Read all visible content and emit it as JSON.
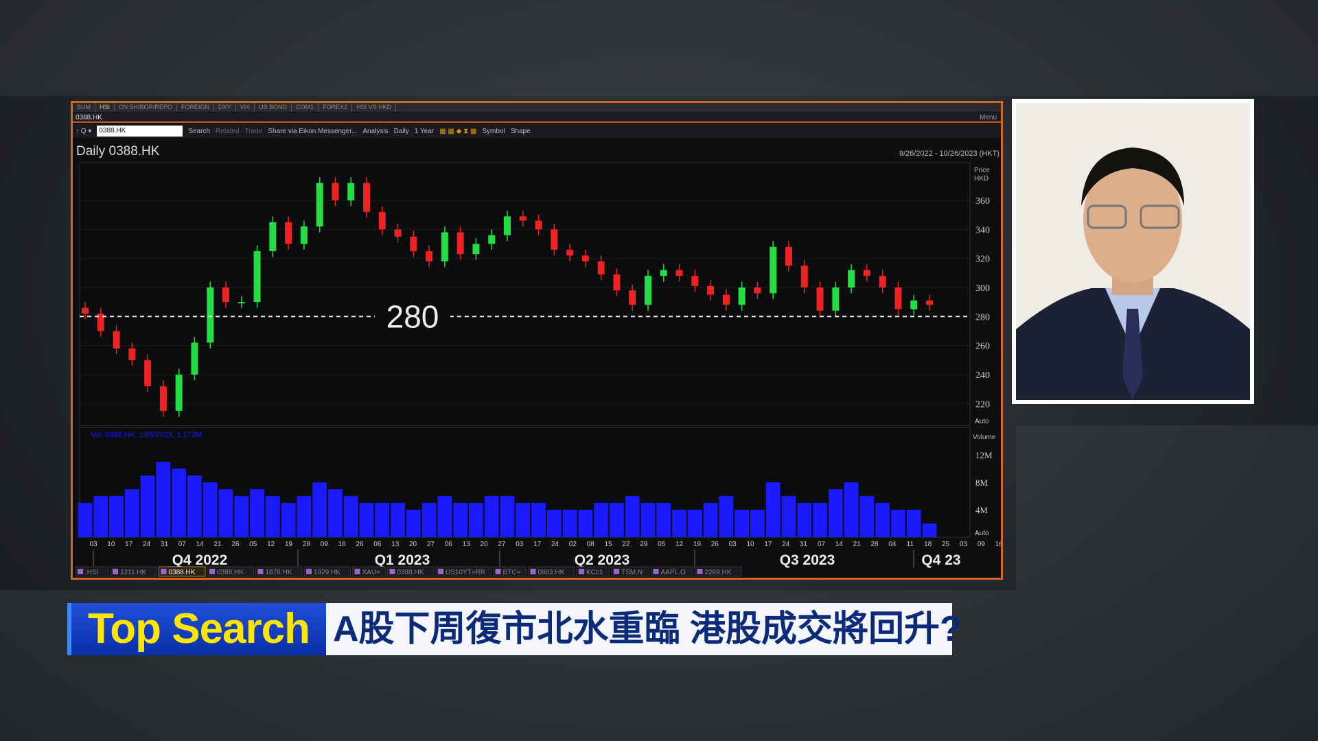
{
  "top_tabs": [
    "SUM",
    "HSI",
    "CN SHIBOR/REPO",
    "FOREIGN",
    "DXY",
    "VIX",
    "US BOND",
    "COM1",
    "FOREX2",
    "HSI VS HKD"
  ],
  "window_title": "0388.HK",
  "menu_label": "Menu",
  "toolbar": {
    "ric_value": "0388.HK",
    "search": "Search",
    "related": "Related",
    "trade": "Trade",
    "share": "Share via Eikon Messenger...",
    "analysis": "Analysis",
    "interval": "Daily",
    "period": "1 Year",
    "symbol": "Symbol",
    "shape": "Shape"
  },
  "bottom_tabs": [
    ".HSI",
    "1211.HK",
    "0388.HK",
    "0388.HK",
    "1876.HK",
    "1929.HK",
    "XAU=",
    "0388.HK",
    "US10YT=RR",
    "BTC=",
    "0883.HK",
    "KCc1",
    "TSM.N",
    "AAPL.O",
    "2269.HK"
  ],
  "active_bottom_tab": 2,
  "banner": {
    "tag": "Top Search",
    "headline": "A股下周復市北水重臨 港股成交將回升?",
    "tag_color": "#1f4fd8",
    "tag_text_color": "#ffe600",
    "headline_color": "#0b2a7a"
  },
  "chart_data": {
    "type": "candlestick",
    "title": "Daily 0388.HK",
    "date_range": "9/26/2022 - 10/26/2023 (HKT)",
    "price_axis_label": "Price HKD",
    "volume_axis_label": "Volume",
    "volume_legend": "Vol, 0388.HK, 10/6/2023, 1.173M",
    "auto_label": "Auto",
    "ylim": [
      205,
      386
    ],
    "price_ticks": [
      220,
      240,
      260,
      280,
      300,
      320,
      340,
      360
    ],
    "volume_ylim_millions": [
      0,
      16
    ],
    "volume_ticks": [
      "4M",
      "8M",
      "12M"
    ],
    "volume_tick_values": [
      4,
      8,
      12
    ],
    "reference_line": {
      "value": 280,
      "label": "280"
    },
    "date_ticks": [
      "03",
      "10",
      "17",
      "24",
      "31",
      "07",
      "14",
      "21",
      "28",
      "05",
      "12",
      "19",
      "28",
      "09",
      "16",
      "26",
      "06",
      "13",
      "20",
      "27",
      "06",
      "13",
      "20",
      "27",
      "03",
      "17",
      "24",
      "02",
      "08",
      "15",
      "22",
      "29",
      "05",
      "12",
      "19",
      "26",
      "03",
      "10",
      "17",
      "24",
      "31",
      "07",
      "14",
      "21",
      "28",
      "04",
      "11",
      "18",
      "25",
      "03",
      "09",
      "16",
      "24"
    ],
    "quarters": [
      "Q4 2022",
      "Q1 2023",
      "Q2 2023",
      "Q3 2023",
      "Q4 23"
    ],
    "weekly_close": [
      282,
      270,
      258,
      250,
      232,
      215,
      240,
      262,
      300,
      290,
      290,
      325,
      345,
      330,
      342,
      372,
      360,
      372,
      352,
      340,
      335,
      325,
      318,
      338,
      323,
      330,
      336,
      349,
      346,
      340,
      326,
      322,
      318,
      309,
      298,
      288,
      308,
      312,
      308,
      301,
      295,
      288,
      300,
      296,
      328,
      315,
      300,
      284,
      300,
      312,
      308,
      300,
      285,
      291,
      288
    ],
    "weekly_volume_millions": [
      5,
      6,
      6,
      7,
      9,
      11,
      10,
      9,
      8,
      7,
      6,
      7,
      6,
      5,
      6,
      8,
      7,
      6,
      5,
      5,
      5,
      4,
      5,
      6,
      5,
      5,
      6,
      6,
      5,
      5,
      4,
      4,
      4,
      5,
      5,
      6,
      5,
      5,
      4,
      4,
      5,
      6,
      4,
      4,
      8,
      6,
      5,
      5,
      7,
      8,
      6,
      5,
      4,
      4,
      2
    ],
    "up_color": "#22dd44",
    "down_color": "#ee2222",
    "volume_color": "#1a1aff"
  }
}
